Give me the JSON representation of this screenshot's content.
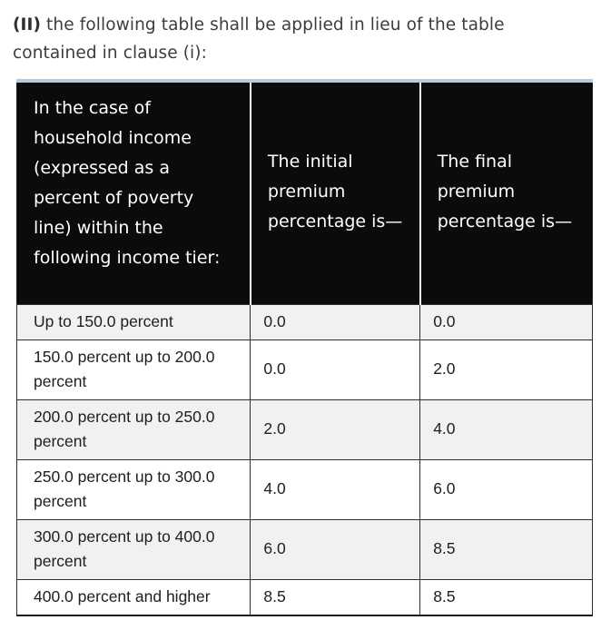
{
  "intro": {
    "clause_label": "(II)",
    "text": " the following table shall be applied in lieu of the table contained in clause (i):"
  },
  "table": {
    "headers": [
      "In the case of household income (expressed as a percent of poverty line) within the following income tier:",
      "The initial premium percentage is—",
      "The final premium percentage is—"
    ],
    "rows": [
      {
        "tier": "Up to 150.0 percent",
        "initial": "0.0",
        "final": "0.0"
      },
      {
        "tier": "150.0 percent up to 200.0 percent",
        "initial": "0.0",
        "final": "2.0"
      },
      {
        "tier": "200.0 percent up to 250.0 percent",
        "initial": "2.0",
        "final": "4.0"
      },
      {
        "tier": "250.0 percent up to 300.0 percent",
        "initial": "4.0",
        "final": "6.0"
      },
      {
        "tier": "300.0 percent up to 400.0 percent",
        "initial": "6.0",
        "final": "8.5"
      },
      {
        "tier": "400.0 percent and higher",
        "initial": "8.5",
        "final": "8.5"
      }
    ]
  },
  "colors": {
    "header_background": "#0b0b0b",
    "header_text": "#ffffff",
    "top_accent_bar": "#b9cbd9",
    "row_stripe": "#f1f1f2",
    "body_text": "#202020",
    "border": "#2e2e2e"
  }
}
